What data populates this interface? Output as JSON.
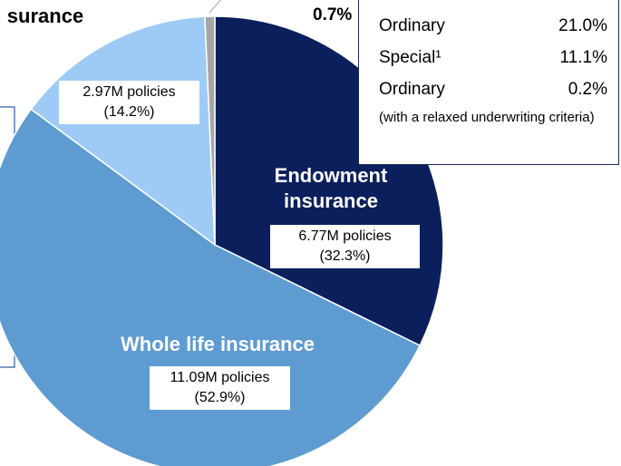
{
  "chart_data": {
    "type": "pie",
    "categories": [
      "Endowment insurance",
      "Whole life insurance",
      "surance",
      null
    ],
    "values": [
      32.3,
      52.9,
      14.2,
      0.7
    ],
    "value_labels": [
      "(32.3%)",
      "(52.9%)",
      "(14.2%)",
      "0.7%"
    ],
    "policies_labels": [
      "6.77M policies",
      "11.09M policies",
      "2.97M policies",
      null
    ],
    "colors": [
      "#0b1f5c",
      "#5e9bd1",
      "#9ecbf5",
      "#a6a6a6"
    ],
    "breakdown": [
      {
        "label": "Ordinary",
        "value_label": "21.0%",
        "value": 21.0
      },
      {
        "label": "Special¹",
        "value_label": "11.1%",
        "value": 11.1
      },
      {
        "label": "Ordinary",
        "value_label": "0.2%",
        "value": 0.2
      }
    ],
    "breakdown_note": "(with a relaxed underwriting criteria)"
  }
}
